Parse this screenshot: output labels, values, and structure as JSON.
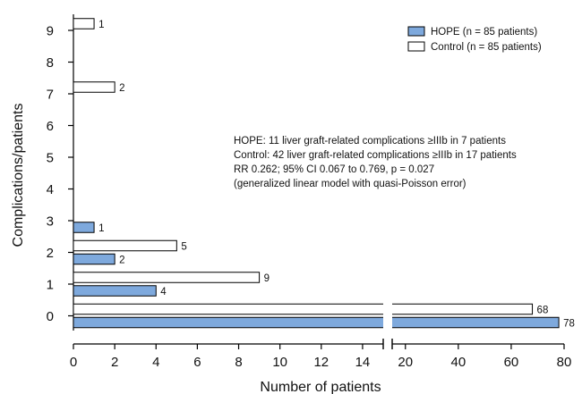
{
  "chart_data": {
    "type": "bar",
    "orientation": "horizontal",
    "xlabel": "Number of patients",
    "ylabel": "Complications/patients",
    "categories": [
      "0",
      "1",
      "2",
      "3",
      "4",
      "5",
      "6",
      "7",
      "8",
      "9"
    ],
    "x_axis": {
      "broken": true,
      "segment1": {
        "range": [
          0,
          15
        ],
        "ticks": [
          0,
          2,
          4,
          6,
          8,
          10,
          12,
          14
        ]
      },
      "segment2": {
        "range": [
          15,
          80
        ],
        "ticks": [
          20,
          40,
          60,
          80
        ]
      }
    },
    "series": [
      {
        "name": "HOPE (n = 85 patients)",
        "color": "#7ea9dd",
        "values": [
          78,
          4,
          2,
          1,
          0,
          0,
          0,
          0,
          0,
          0
        ]
      },
      {
        "name": "Control (n = 85 patients)",
        "color": "#ffffff",
        "values": [
          68,
          9,
          5,
          0,
          0,
          0,
          0,
          2,
          0,
          1
        ]
      }
    ],
    "legend_position": "top-right",
    "annotation_lines": [
      "HOPE: 11 liver graft-related complications ≥IIIb in 7 patients",
      "Control: 42 liver graft-related complications ≥IIIb in 17 patients",
      "RR 0.262; 95% CI 0.067 to 0.769, p = 0.027",
      "(generalized linear model with quasi-Poisson error)"
    ],
    "grid": false
  }
}
